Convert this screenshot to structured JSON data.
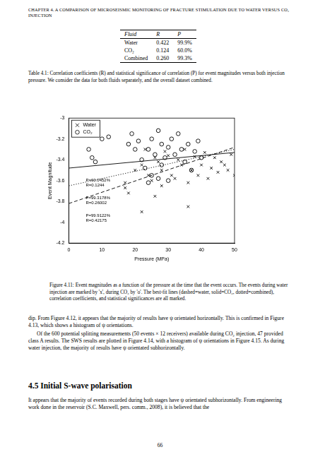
{
  "header": "CHAPTER 4.  A COMPARISON OF MICROSEISMIC MONITORING OF FRACTURE STIMULATION DUE TO WATER VERSUS CO₂ INJECTION",
  "table": {
    "columns": [
      "Fluid",
      "R",
      "P"
    ],
    "rows": [
      [
        "Water",
        "0.422",
        "99.9%"
      ],
      [
        "CO₂",
        "0.124",
        "60.0%"
      ],
      [
        "Combined",
        "0.260",
        "99.3%"
      ]
    ]
  },
  "table_caption": "Table 4.1: Correlation coefficients (R) and statistical significance of correlation (P) for event magnitudes versus both injection pressure. We consider the data for both fluids separately, and the overall dataset combined.",
  "chart_data": {
    "type": "scatter",
    "x_label": "Pressure (MPa)",
    "y_label": "Event Magnitude",
    "xlim": [
      0,
      50
    ],
    "xticks": [
      0,
      10,
      20,
      30,
      40,
      50
    ],
    "ylim": [
      -4.2,
      -3
    ],
    "yticks": [
      -4.2,
      -4,
      -3.8,
      -3.6,
      -3.4,
      -3.2,
      -3
    ],
    "grid": false,
    "legend": "upper left",
    "series": [
      {
        "name": "Water",
        "color": "#000000",
        "marker": "cross",
        "x": [
          17,
          17,
          18,
          20,
          22,
          23,
          24,
          25,
          26,
          27,
          28,
          28,
          29,
          30,
          31,
          32,
          33,
          34,
          35,
          36,
          37,
          38,
          39,
          40,
          41,
          42,
          43,
          44,
          45,
          46,
          47,
          48,
          49,
          50,
          22,
          36,
          26
        ],
        "values": [
          -3.62,
          -3.67,
          -3.72,
          -3.5,
          -3.45,
          -3.3,
          -3.55,
          -3.6,
          -3.38,
          -3.42,
          -3.5,
          -3.65,
          -3.32,
          -3.36,
          -3.55,
          -3.58,
          -3.4,
          -3.45,
          -3.3,
          -3.62,
          -3.5,
          -3.37,
          -3.55,
          -3.45,
          -3.33,
          -3.58,
          -3.48,
          -3.38,
          -3.52,
          -3.42,
          -3.45,
          -3.5,
          -3.35,
          -3.55,
          -3.9,
          -3.85,
          -3.75
        ]
      },
      {
        "name": "CO₂",
        "color": "#000000",
        "marker": "circle",
        "x": [
          6,
          7,
          8,
          10,
          12,
          18,
          19,
          20,
          21,
          22,
          23,
          24,
          25,
          25,
          26,
          27,
          28,
          28,
          29,
          30,
          30,
          31,
          32,
          33,
          34,
          35,
          36,
          37,
          38,
          39,
          40,
          24,
          27
        ],
        "values": [
          -3.3,
          -3.38,
          -3.42,
          -3.2,
          -3.18,
          -3.25,
          -3.15,
          -3.3,
          -3.22,
          -3.4,
          -3.48,
          -3.3,
          -3.2,
          -3.55,
          -3.35,
          -3.12,
          -3.25,
          -3.45,
          -3.38,
          -3.28,
          -3.6,
          -3.2,
          -3.35,
          -3.15,
          -3.3,
          -3.42,
          -3.25,
          -3.5,
          -3.32,
          -3.22,
          -3.38,
          -3.62,
          -3.58
        ]
      },
      {
        "type": "line",
        "line_style": "dashed",
        "color": "#000000",
        "x": [
          0,
          50
        ],
        "values": [
          -3.82,
          -3.28
        ]
      },
      {
        "type": "line",
        "line_style": "solid",
        "color": "#000000",
        "x": [
          0,
          50
        ],
        "values": [
          -3.48,
          -3.33
        ]
      },
      {
        "type": "line",
        "line_style": "dotted",
        "color": "#000000",
        "x": [
          0,
          50
        ],
        "values": [
          -3.65,
          -3.3
        ]
      }
    ],
    "annotations": [
      [
        "P=60.0452%",
        "R=0.1244"
      ],
      [
        "P=99.3178%",
        "R=0.26002"
      ],
      [
        "P=99.9122%",
        "R=0.42175"
      ]
    ]
  },
  "figure_caption": "Figure 4.11: Event magnitudes as a function of the pressure at the time that the event occurs. The events during water injection are marked by 'x', during CO₂ by 'o'. The best-fit lines (dashed=water, solid=CO₂, dotted=combined), correlation coefficients, and statistical significances are all marked.",
  "body": [
    "dip. From Figure 4.12, it appears that the majority of results have ψ orientated horizontally. This is confirmed in Figure 4.13, which shows a histogram of ψ orientations.",
    "Of the 600 potential splitting measurements (50 events × 12 receivers) available during CO₂ injection, 47 provided class A results. The SWS results are plotted in Figure 4.14, with a histogram of ψ orientations in Figure 4.15. As during water injection, the majority of results have ψ orientated subhorizontally.",
    "It appears that the majority of events recorded during both stages have ψ orientated subhorizontally. From engineering work done in the reservoir (S.C. Maxwell, pers. comm., 2008), it is believed that the"
  ],
  "section_heading": "4.5  Initial S-wave polarisation",
  "page_number": "66"
}
